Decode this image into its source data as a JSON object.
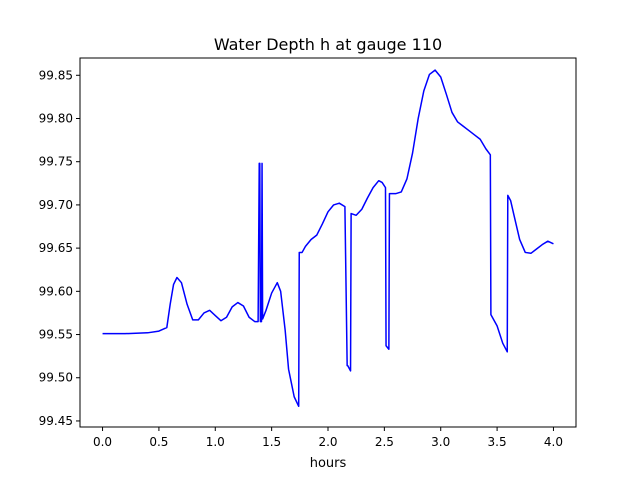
{
  "chart_data": {
    "type": "line",
    "title": "Water Depth h at gauge 110",
    "xlabel": "hours",
    "ylabel": "",
    "xlim": [
      -0.2,
      4.2
    ],
    "ylim": [
      99.443,
      99.87
    ],
    "xticks": [
      0.0,
      0.5,
      1.0,
      1.5,
      2.0,
      2.5,
      3.0,
      3.5,
      4.0
    ],
    "xtick_labels": [
      "0.0",
      "0.5",
      "1.0",
      "1.5",
      "2.0",
      "2.5",
      "3.0",
      "3.5",
      "4.0"
    ],
    "yticks": [
      99.45,
      99.5,
      99.55,
      99.6,
      99.65,
      99.7,
      99.75,
      99.8,
      99.85
    ],
    "ytick_labels": [
      "99.45",
      "99.50",
      "99.55",
      "99.60",
      "99.65",
      "99.70",
      "99.75",
      "99.80",
      "99.85"
    ],
    "grid": false,
    "series": [
      {
        "color": "#0000ff",
        "x": [
          0.0,
          0.2,
          0.4,
          0.5,
          0.57,
          0.6,
          0.63,
          0.66,
          0.7,
          0.75,
          0.8,
          0.85,
          0.9,
          0.95,
          1.0,
          1.05,
          1.1,
          1.15,
          1.2,
          1.25,
          1.3,
          1.35,
          1.38,
          1.39,
          1.395,
          1.4,
          1.41,
          1.415,
          1.42,
          1.45,
          1.5,
          1.55,
          1.58,
          1.62,
          1.65,
          1.7,
          1.74,
          1.745,
          1.77,
          1.8,
          1.85,
          1.9,
          1.95,
          2.0,
          2.05,
          2.1,
          2.15,
          2.17,
          2.175,
          2.2,
          2.205,
          2.25,
          2.3,
          2.35,
          2.4,
          2.45,
          2.48,
          2.51,
          2.515,
          2.54,
          2.545,
          2.6,
          2.65,
          2.7,
          2.75,
          2.8,
          2.85,
          2.9,
          2.95,
          3.0,
          3.05,
          3.1,
          3.15,
          3.2,
          3.25,
          3.3,
          3.35,
          3.4,
          3.44,
          3.445,
          3.5,
          3.55,
          3.59,
          3.595,
          3.62,
          3.65,
          3.7,
          3.75,
          3.8,
          3.85,
          3.9,
          3.95,
          4.0
        ],
        "values": [
          99.551,
          99.551,
          99.552,
          99.554,
          99.558,
          99.585,
          99.608,
          99.616,
          99.61,
          99.585,
          99.567,
          99.567,
          99.575,
          99.578,
          99.572,
          99.566,
          99.57,
          99.582,
          99.587,
          99.583,
          99.57,
          99.565,
          99.565,
          99.748,
          99.748,
          99.565,
          99.565,
          99.748,
          99.568,
          99.578,
          99.598,
          99.61,
          99.6,
          99.555,
          99.51,
          99.478,
          99.467,
          99.645,
          99.645,
          99.652,
          99.66,
          99.665,
          99.678,
          99.692,
          99.7,
          99.702,
          99.698,
          99.514,
          99.514,
          99.508,
          99.69,
          99.688,
          99.695,
          99.708,
          99.72,
          99.728,
          99.726,
          99.72,
          99.537,
          99.533,
          99.713,
          99.713,
          99.715,
          99.73,
          99.76,
          99.8,
          99.832,
          99.851,
          99.856,
          99.848,
          99.828,
          99.807,
          99.796,
          99.791,
          99.786,
          99.781,
          99.776,
          99.765,
          99.758,
          99.573,
          99.56,
          99.54,
          99.53,
          99.711,
          99.705,
          99.688,
          99.66,
          99.645,
          99.644,
          99.649,
          99.654,
          99.658,
          99.655
        ]
      }
    ]
  }
}
